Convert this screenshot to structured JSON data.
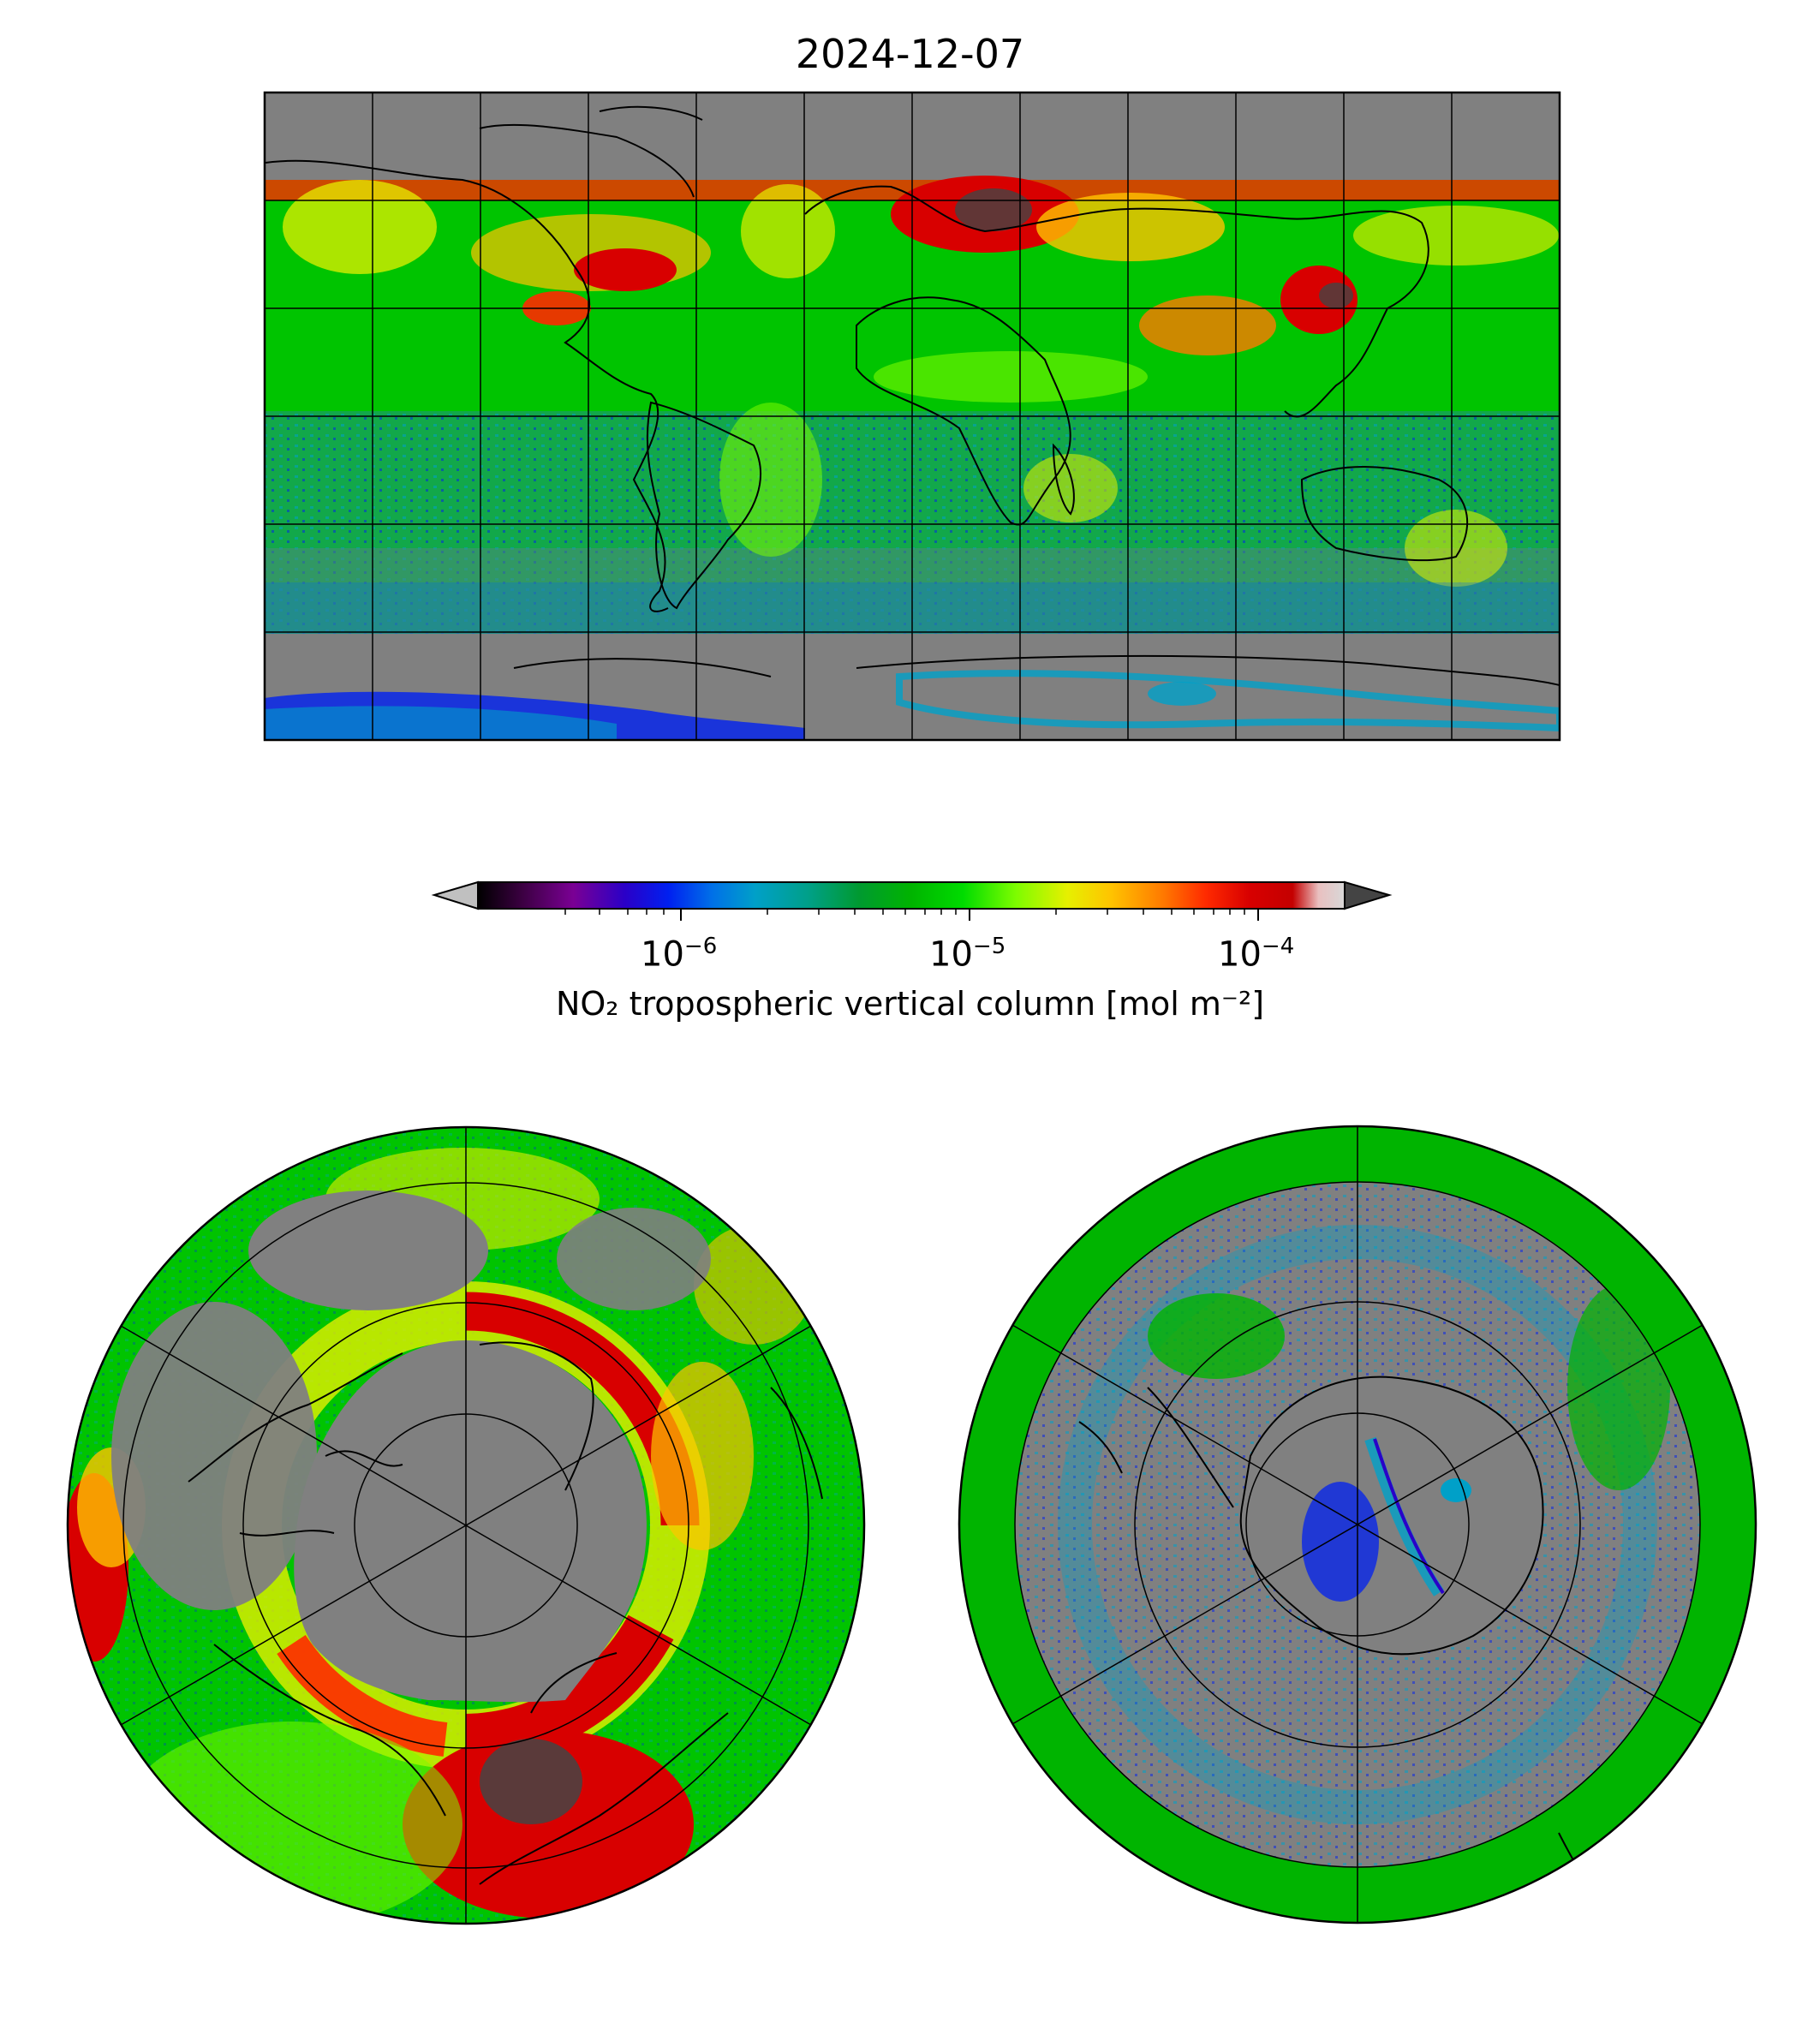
{
  "figure": {
    "title": "2024-12-07",
    "colorbar": {
      "label": "NO₂ tropospheric vertical column [mol m⁻²]",
      "scale": "log",
      "range": [
        "2e-7",
        "2e-4"
      ],
      "extend": "both",
      "tick_labels": [
        {
          "base": "10",
          "exp": "−6",
          "value": "1e-6"
        },
        {
          "base": "10",
          "exp": "−5",
          "value": "1e-5"
        },
        {
          "base": "10",
          "exp": "−4",
          "value": "1e-4"
        }
      ],
      "colors": [
        "#000000",
        "#3a0040",
        "#7a0094",
        "#2a00c8",
        "#0020f0",
        "#0070e8",
        "#00a0c8",
        "#00a08a",
        "#009a30",
        "#00b400",
        "#00dc00",
        "#7cfc00",
        "#e6f000",
        "#ffc400",
        "#ff7a00",
        "#ff2a00",
        "#d80000",
        "#c40000",
        "#e9c0c0",
        "#d8d8d8"
      ],
      "under_color": "#c0c0c0",
      "over_color": "#444444",
      "missing_color": "#808080"
    },
    "panels": [
      {
        "name": "global",
        "projection": "plate-carree",
        "gridlines": "30-degree"
      },
      {
        "name": "north-polar",
        "projection": "north-polar-stereographic"
      },
      {
        "name": "south-polar",
        "projection": "south-polar-stereographic"
      }
    ]
  }
}
